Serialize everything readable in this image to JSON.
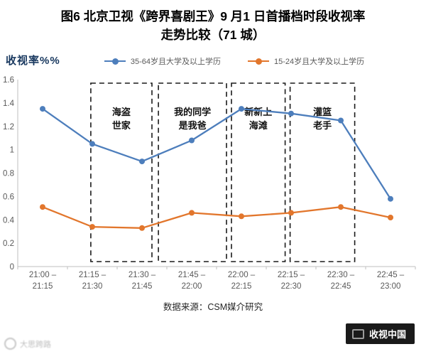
{
  "title": {
    "line1": "图6 北京卫视《跨界喜剧王》9 月1 日首播档时段收视率",
    "line2": "走势比较（71 城）"
  },
  "y_axis_label": "收视率%%",
  "source": "数据来源：CSM媒介研究",
  "watermark_text": "大思跨路",
  "badge_text": "收视中国",
  "colors": {
    "series1_blue": "#4D7EBC",
    "series2_orange": "#E2762C",
    "axis_line": "#BFBFBF",
    "tick_text": "#595959",
    "y_axis_title": "#17375E",
    "annotation_border": "#1A1A1A",
    "badge_bg": "#1A1A1A"
  },
  "chart_data": {
    "type": "line",
    "title": "北京卫视《跨界喜剧王》9月1日首播档时段收视率走势比较（71城）",
    "ylabel": "收视率%%",
    "ylim": [
      0,
      1.6
    ],
    "yticks": [
      0,
      0.2,
      0.4,
      0.6,
      0.8,
      1,
      1.2,
      1.4,
      1.6
    ],
    "grid": false,
    "legend_position": "top",
    "categories": [
      [
        "21:00 –",
        "21:15"
      ],
      [
        "21:15 –",
        "21:30"
      ],
      [
        "21:30 –",
        "21:45"
      ],
      [
        "21:45 –",
        "22:00"
      ],
      [
        "22:00 –",
        "22:15"
      ],
      [
        "22:15 –",
        "22:30"
      ],
      [
        "22:30 –",
        "22:45"
      ],
      [
        "22:45 –",
        "23:00"
      ]
    ],
    "series": [
      {
        "name": "35-64岁且大学及以上学历",
        "color": "#4D7EBC",
        "values": [
          1.35,
          1.05,
          0.9,
          1.08,
          1.35,
          1.31,
          1.25,
          0.58
        ]
      },
      {
        "name": "15-24岁且大学及以上学历",
        "color": "#E2762C",
        "values": [
          0.51,
          0.34,
          0.33,
          0.46,
          0.43,
          0.46,
          0.51,
          0.42
        ]
      }
    ],
    "annotations": [
      {
        "label": "海盗世家",
        "lines": [
          "海盗",
          "世家"
        ],
        "from": 0.97,
        "to": 2.2
      },
      {
        "label": "我的同学是我爸",
        "lines": [
          "我的同学",
          "是我爸"
        ],
        "from": 2.33,
        "to": 3.7
      },
      {
        "label": "新新上海滩",
        "lines": [
          "新新上",
          "海滩"
        ],
        "from": 3.8,
        "to": 4.88
      },
      {
        "label": "灌篮老手",
        "lines": [
          "灌篮",
          "老手"
        ],
        "from": 4.98,
        "to": 6.28
      }
    ]
  }
}
